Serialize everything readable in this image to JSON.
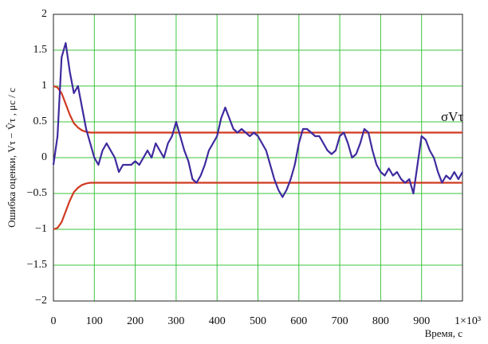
{
  "chart_data": {
    "type": "line",
    "y_label": "Ошибка оценки,  Vτ − V̂τ , μс / с",
    "x_label": "Время, с",
    "annotation": "σVτ",
    "xlim": [
      0,
      1000
    ],
    "xticks": [
      0,
      100,
      200,
      300,
      400,
      500,
      600,
      700,
      800,
      900,
      {
        "value": 1000,
        "label": "1×10³"
      }
    ],
    "ylim": [
      -2,
      2
    ],
    "yticks": [
      {
        "value": -2,
        "label": "−2"
      },
      {
        "value": -1.5,
        "label": "−1.5"
      },
      {
        "value": -1,
        "label": "−1"
      },
      {
        "value": -0.5,
        "label": "−0.5"
      },
      0,
      0.5,
      1,
      1.5,
      2
    ],
    "grid": true,
    "series": [
      {
        "color": "#d03a22",
        "x": [
          0,
          10,
          20,
          30,
          40,
          50,
          60,
          70,
          80,
          90,
          100,
          1000
        ],
        "values": [
          1.0,
          0.98,
          0.9,
          0.75,
          0.6,
          0.48,
          0.42,
          0.38,
          0.36,
          0.35,
          0.35,
          0.35
        ]
      },
      {
        "color": "#d03a22",
        "x": [
          0,
          10,
          20,
          30,
          40,
          50,
          60,
          70,
          80,
          90,
          100,
          1000
        ],
        "values": [
          -1.0,
          -0.98,
          -0.9,
          -0.75,
          -0.6,
          -0.48,
          -0.42,
          -0.38,
          -0.36,
          -0.35,
          -0.35,
          -0.35
        ]
      },
      {
        "color": "#3f2a9e",
        "x": [
          0,
          10,
          20,
          30,
          40,
          50,
          60,
          70,
          80,
          90,
          100,
          110,
          120,
          130,
          140,
          150,
          160,
          170,
          180,
          190,
          200,
          210,
          220,
          230,
          240,
          250,
          260,
          270,
          280,
          290,
          300,
          310,
          320,
          330,
          340,
          350,
          360,
          370,
          380,
          390,
          400,
          410,
          420,
          430,
          440,
          450,
          460,
          470,
          480,
          490,
          500,
          510,
          520,
          530,
          540,
          550,
          560,
          570,
          580,
          590,
          600,
          610,
          620,
          630,
          640,
          650,
          660,
          670,
          680,
          690,
          700,
          710,
          720,
          730,
          740,
          750,
          760,
          770,
          780,
          790,
          800,
          810,
          820,
          830,
          840,
          850,
          860,
          870,
          880,
          890,
          900,
          910,
          920,
          930,
          940,
          950,
          960,
          970,
          980,
          990,
          1000
        ],
        "values": [
          -0.1,
          0.3,
          1.4,
          1.6,
          1.2,
          0.9,
          1.0,
          0.7,
          0.4,
          0.2,
          0.0,
          -0.1,
          0.1,
          0.2,
          0.1,
          0.0,
          -0.2,
          -0.1,
          -0.1,
          -0.1,
          -0.05,
          -0.1,
          0.0,
          0.1,
          0.0,
          0.2,
          0.1,
          0.0,
          0.2,
          0.3,
          0.5,
          0.3,
          0.1,
          -0.05,
          -0.3,
          -0.35,
          -0.25,
          -0.1,
          0.1,
          0.2,
          0.3,
          0.55,
          0.7,
          0.55,
          0.4,
          0.35,
          0.4,
          0.35,
          0.3,
          0.35,
          0.3,
          0.2,
          0.1,
          -0.1,
          -0.3,
          -0.45,
          -0.55,
          -0.45,
          -0.3,
          -0.1,
          0.2,
          0.4,
          0.4,
          0.35,
          0.3,
          0.3,
          0.2,
          0.1,
          0.05,
          0.1,
          0.3,
          0.35,
          0.2,
          0.0,
          0.05,
          0.2,
          0.4,
          0.35,
          0.1,
          -0.1,
          -0.2,
          -0.25,
          -0.15,
          -0.25,
          -0.2,
          -0.3,
          -0.35,
          -0.3,
          -0.5,
          -0.1,
          0.3,
          0.25,
          0.1,
          0.0,
          -0.2,
          -0.35,
          -0.25,
          -0.3,
          -0.2,
          -0.3,
          -0.2
        ]
      }
    ]
  }
}
